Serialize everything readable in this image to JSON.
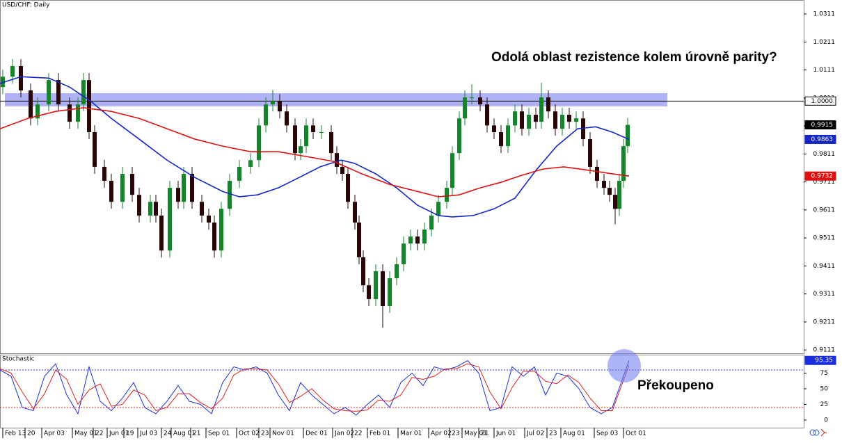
{
  "chart_data": [
    {
      "type": "candlestick",
      "title": "USD/CHF: Daily",
      "annotation": "Odolá oblast rezistence kolem úrovně parity?",
      "up_color": "#13862a",
      "down_color": "#2a0606",
      "x": [
        2,
        9,
        15,
        22,
        27,
        35,
        42,
        50,
        56,
        60,
        64,
        68,
        75,
        80,
        88,
        95,
        100,
        108,
        112,
        116,
        122,
        128,
        132,
        138,
        145,
        150,
        154,
        159,
        165,
        172,
        180,
        186,
        191,
        196,
        201,
        206,
        212,
        216,
        220,
        225,
        231,
        238,
        242,
        246,
        250,
        255,
        258,
        261,
        265,
        270,
        275,
        280,
        285,
        290,
        295,
        300,
        305,
        310,
        315,
        321,
        325,
        330,
        334,
        339,
        345,
        350,
        355,
        360,
        365,
        370,
        375,
        380,
        385,
        389,
        394,
        399,
        404,
        409,
        414,
        419,
        424,
        429,
        434,
        438,
        442,
        445,
        448,
        451
      ],
      "open": [
        1.005,
        1.0087,
        1.0125,
        1.0038,
        0.9938,
        0.9988,
        1.0075,
        0.9988,
        0.9926,
        0.9988,
        1.0075,
        0.9889,
        0.9765,
        0.9715,
        0.964,
        0.974,
        0.9665,
        0.9591,
        0.964,
        0.9591,
        0.9466,
        0.969,
        0.964,
        0.974,
        0.964,
        0.9591,
        0.9566,
        0.9466,
        0.9615,
        0.9715,
        0.9765,
        0.9789,
        0.9913,
        0.9988,
        1.0,
        0.9963,
        0.9913,
        0.9814,
        0.9839,
        0.9913,
        0.9889,
        0.9889,
        0.9814,
        0.9765,
        0.974,
        0.964,
        0.9566,
        0.9442,
        0.9342,
        0.9293,
        0.9392,
        0.9268,
        0.9367,
        0.9417,
        0.9491,
        0.9516,
        0.9491,
        0.9541,
        0.9591,
        0.964,
        0.969,
        0.9814,
        0.9938,
        1.0013,
        1.0013,
        0.9988,
        0.9913,
        0.9889,
        0.9839,
        0.9913,
        0.9963,
        0.9901,
        0.9951,
        0.9926,
        1.0013,
        0.9963,
        0.9901,
        0.9951,
        0.9926,
        0.9938,
        0.9864,
        0.9765,
        0.9715,
        0.969,
        0.9665,
        0.9615,
        0.9715,
        0.9839
      ],
      "high": [
        1.0112,
        1.015,
        1.015,
        1.0063,
        1.0013,
        1.01,
        1.01,
        1.0013,
        1.0013,
        1.01,
        1.01,
        0.9914,
        0.979,
        0.974,
        0.9765,
        0.9765,
        0.969,
        0.9665,
        0.9665,
        0.9616,
        0.9715,
        0.9715,
        0.9765,
        0.9765,
        0.9665,
        0.9616,
        0.9591,
        0.964,
        0.974,
        0.979,
        0.9814,
        0.9938,
        1.0013,
        1.004,
        1.0025,
        0.9988,
        0.9938,
        0.9864,
        0.9938,
        0.9938,
        0.9914,
        0.9914,
        0.9839,
        0.979,
        0.9765,
        0.9665,
        0.9591,
        0.9467,
        0.9367,
        0.9417,
        0.9417,
        0.9392,
        0.9442,
        0.9516,
        0.9541,
        0.9541,
        0.9566,
        0.9616,
        0.9665,
        0.9715,
        0.9839,
        0.9963,
        1.0038,
        1.006,
        1.0038,
        1.0013,
        0.9938,
        0.9914,
        0.9938,
        0.9988,
        0.9988,
        0.9976,
        0.9976,
        1.0065,
        1.0038,
        0.9988,
        0.9976,
        0.9976,
        0.9963,
        0.9963,
        0.9889,
        0.979,
        0.974,
        0.9715,
        0.969,
        0.974,
        0.9864,
        0.994
      ],
      "low": [
        1.0025,
        1.0062,
        1.0013,
        0.9913,
        0.9913,
        0.9963,
        0.9963,
        0.9901,
        0.9901,
        0.9963,
        0.9864,
        0.974,
        0.969,
        0.9615,
        0.9615,
        0.964,
        0.9566,
        0.9566,
        0.9566,
        0.9441,
        0.9441,
        0.9615,
        0.9615,
        0.9615,
        0.9566,
        0.9541,
        0.9441,
        0.9441,
        0.959,
        0.969,
        0.974,
        0.9764,
        0.9888,
        0.9963,
        0.9938,
        0.9888,
        0.9789,
        0.9789,
        0.9814,
        0.9864,
        0.9864,
        0.9789,
        0.974,
        0.9715,
        0.9615,
        0.9541,
        0.9417,
        0.9317,
        0.9268,
        0.9268,
        0.919,
        0.9243,
        0.9342,
        0.9392,
        0.9466,
        0.9466,
        0.9466,
        0.9516,
        0.9566,
        0.9615,
        0.9665,
        0.9789,
        0.9913,
        0.9988,
        0.9963,
        0.9888,
        0.9864,
        0.9814,
        0.9814,
        0.9888,
        0.9876,
        0.9876,
        0.9901,
        0.9901,
        0.9938,
        0.9876,
        0.9876,
        0.9901,
        0.9901,
        0.9839,
        0.974,
        0.969,
        0.9665,
        0.964,
        0.956,
        0.959,
        0.969,
        0.9814
      ],
      "close": [
        1.0087,
        1.0125,
        1.0038,
        0.9938,
        0.9988,
        1.0075,
        0.9988,
        0.9926,
        0.9988,
        1.0075,
        0.9889,
        0.9765,
        0.9715,
        0.964,
        0.974,
        0.9665,
        0.9591,
        0.964,
        0.9591,
        0.9466,
        0.969,
        0.964,
        0.974,
        0.964,
        0.9591,
        0.9566,
        0.9466,
        0.9615,
        0.9715,
        0.9765,
        0.9789,
        0.9913,
        0.9988,
        1.0,
        0.9963,
        0.9913,
        0.9814,
        0.9839,
        0.9913,
        0.9889,
        0.9889,
        0.9814,
        0.9765,
        0.974,
        0.964,
        0.9566,
        0.9442,
        0.9342,
        0.9293,
        0.9392,
        0.9268,
        0.9367,
        0.9417,
        0.9491,
        0.9516,
        0.9491,
        0.9541,
        0.9591,
        0.964,
        0.969,
        0.9814,
        0.9938,
        1.0013,
        1.0013,
        0.9988,
        0.9913,
        0.9889,
        0.9839,
        0.9913,
        0.9963,
        0.9901,
        0.9951,
        0.9926,
        1.0013,
        0.9963,
        0.9901,
        0.9951,
        0.9926,
        0.9938,
        0.9864,
        0.9765,
        0.9715,
        0.969,
        0.9665,
        0.9615,
        0.9715,
        0.9839,
        0.9915
      ],
      "overlays": [
        {
          "color": "#1426c8",
          "x": [
            0,
            15,
            35,
            50,
            65,
            80,
            100,
            120,
            140,
            160,
            172,
            185,
            200,
            215,
            230,
            245,
            255,
            270,
            285,
            300,
            315,
            325,
            340,
            355,
            370,
            385,
            400,
            415,
            428,
            440,
            452
          ],
          "values": [
            1.0063,
            1.0087,
            1.0082,
            1.005,
            1.0,
            0.9938,
            0.9864,
            0.9789,
            0.9727,
            0.9677,
            0.9658,
            0.9665,
            0.969,
            0.9727,
            0.9765,
            0.9789,
            0.9777,
            0.974,
            0.969,
            0.9628,
            0.9591,
            0.9586,
            0.9591,
            0.9615,
            0.9653,
            0.9752,
            0.9839,
            0.9901,
            0.9908,
            0.9889,
            0.9863
          ]
        },
        {
          "color": "#e01010",
          "x": [
            0,
            20,
            40,
            60,
            80,
            100,
            120,
            140,
            160,
            180,
            200,
            220,
            240,
            260,
            280,
            300,
            315,
            330,
            345,
            360,
            375,
            390,
            405,
            420,
            440,
            452
          ],
          "values": [
            0.9901,
            0.9938,
            0.9963,
            0.9976,
            0.9963,
            0.9938,
            0.9901,
            0.9864,
            0.9839,
            0.9819,
            0.9819,
            0.9802,
            0.9784,
            0.974,
            0.9702,
            0.9677,
            0.9658,
            0.9665,
            0.969,
            0.971,
            0.9735,
            0.9757,
            0.9765,
            0.9755,
            0.974,
            0.9732
          ]
        }
      ],
      "hline": {
        "value": 1,
        "label": "1.0000"
      },
      "zone": [
        0.9981,
        1.0028
      ],
      "zone_color": "#7a80f0",
      "xlim": [
        0,
        577.5
      ],
      "ylim": [
        0.9099,
        1.0361
      ],
      "yticks": [
        1.0311,
        1.0211,
        1.0111,
        1.0011,
        0.9911,
        0.9811,
        0.9711,
        0.9611,
        0.9511,
        0.9411,
        0.9311,
        0.9211,
        0.9111
      ]
    },
    {
      "type": "line",
      "title": "Stochastic",
      "annotation": "Překoupeno",
      "x": [
        0,
        8,
        16,
        24,
        32,
        40,
        48,
        56,
        64,
        72,
        80,
        88,
        96,
        104,
        112,
        120,
        128,
        136,
        144,
        152,
        160,
        168,
        176,
        184,
        192,
        200,
        208,
        216,
        224,
        232,
        240,
        248,
        256,
        264,
        272,
        280,
        288,
        296,
        304,
        312,
        320,
        328,
        336,
        344,
        352,
        360,
        368,
        376,
        384,
        392,
        400,
        408,
        416,
        424,
        432,
        440,
        452
      ],
      "series": [
        {
          "color": "#1a2ee0",
          "values": [
            80,
            70,
            20,
            15,
            70,
            90,
            40,
            10,
            85,
            30,
            15,
            35,
            60,
            20,
            10,
            30,
            55,
            30,
            25,
            10,
            60,
            85,
            80,
            85,
            75,
            40,
            15,
            60,
            40,
            25,
            10,
            20,
            8,
            25,
            40,
            20,
            60,
            75,
            55,
            85,
            80,
            85,
            95,
            75,
            15,
            20,
            85,
            70,
            85,
            40,
            75,
            70,
            50,
            20,
            10,
            20,
            95.35
          ]
        },
        {
          "color": "#e02020",
          "values": [
            82,
            75,
            45,
            18,
            42,
            80,
            65,
            25,
            48,
            58,
            22,
            25,
            48,
            40,
            15,
            20,
            42,
            42,
            28,
            18,
            35,
            72,
            82,
            82,
            80,
            58,
            28,
            38,
            50,
            32,
            18,
            15,
            14,
            16,
            32,
            30,
            40,
            68,
            65,
            70,
            82,
            82,
            90,
            85,
            45,
            18,
            52,
            78,
            78,
            62,
            58,
            72,
            60,
            35,
            15,
            15,
            88
          ]
        }
      ],
      "levels": [
        80,
        20
      ],
      "level_colors": [
        "#3030c0",
        "#e02020"
      ],
      "xlim": [
        0,
        577.5
      ],
      "ylim": [
        -12.3,
        104.5
      ],
      "yticks": [
        0,
        25,
        50,
        75
      ],
      "xticks": [
        {
          "value": 2,
          "label": "Feb 13"
        },
        {
          "value": 18,
          "label": "20"
        },
        {
          "value": 30,
          "label": "Apr 03"
        },
        {
          "value": 52,
          "label": "May 01"
        },
        {
          "value": 67,
          "label": "22"
        },
        {
          "value": 77,
          "label": "Jun 01"
        },
        {
          "value": 89,
          "label": "19"
        },
        {
          "value": 99,
          "label": "Jul 03"
        },
        {
          "value": 116,
          "label": "24"
        },
        {
          "value": 123,
          "label": "Aug 01"
        },
        {
          "value": 137,
          "label": "21"
        },
        {
          "value": 148,
          "label": "Sep 01"
        },
        {
          "value": 170,
          "label": "Oct 02"
        },
        {
          "value": 186,
          "label": "23"
        },
        {
          "value": 194,
          "label": "Nov 01"
        },
        {
          "value": 218,
          "label": "Dec 01"
        },
        {
          "value": 239,
          "label": "Jan 02"
        },
        {
          "value": 253,
          "label": "22"
        },
        {
          "value": 264,
          "label": "Feb 01"
        },
        {
          "value": 286,
          "label": "Mar 01"
        },
        {
          "value": 308,
          "label": "Apr 02"
        },
        {
          "value": 323,
          "label": "23"
        },
        {
          "value": 332,
          "label": "May 01"
        },
        {
          "value": 344,
          "label": "21"
        },
        {
          "value": 355,
          "label": "Jun 01"
        },
        {
          "value": 377,
          "label": "Jul 02"
        },
        {
          "value": 393,
          "label": "23"
        },
        {
          "value": 403,
          "label": "Aug 01"
        },
        {
          "value": 427,
          "label": "Sep 03"
        },
        {
          "value": 448,
          "label": "Oct 01"
        }
      ]
    }
  ]
}
